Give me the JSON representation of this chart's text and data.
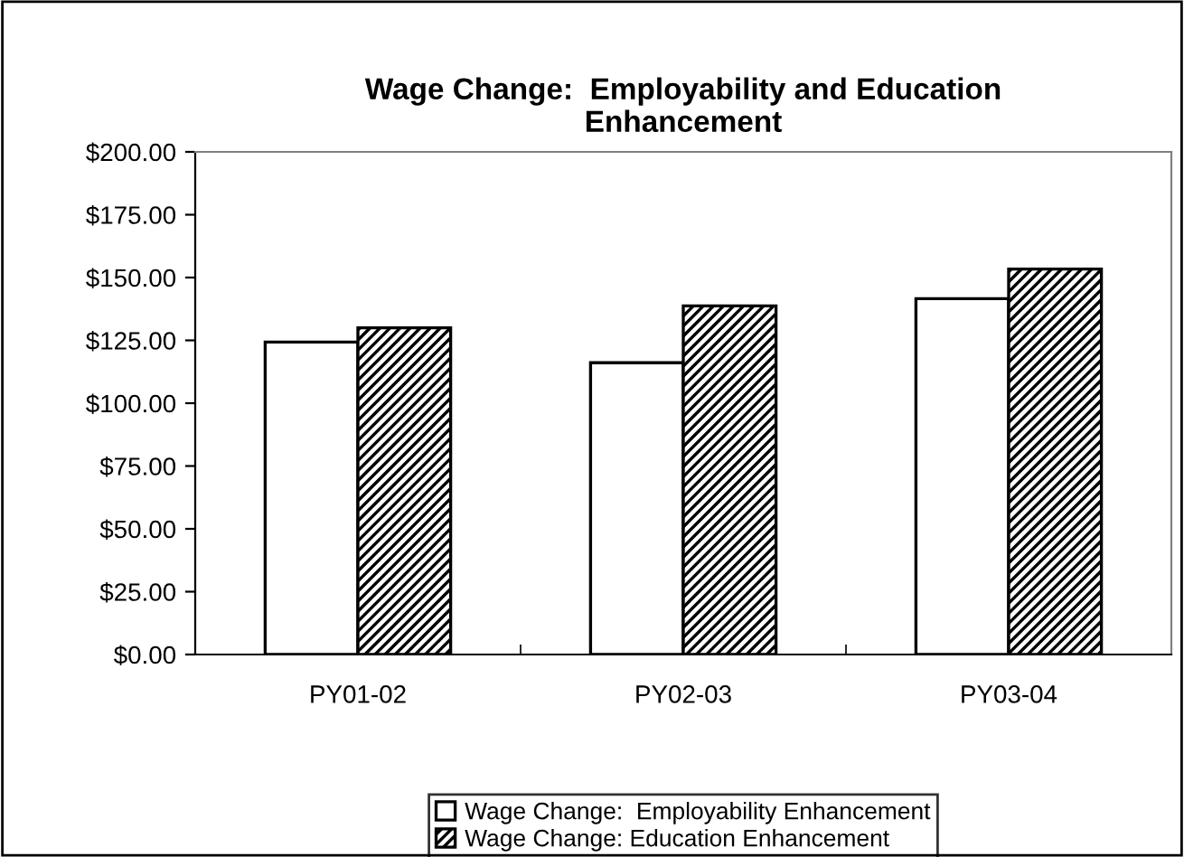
{
  "chart_data": {
    "type": "bar",
    "title": "Wage Change:  Employability and Education\nEnhancement",
    "categories": [
      "PY01-02",
      "PY02-03",
      "PY03-04"
    ],
    "series": [
      {
        "name": "Wage Change:  Employability Enhancement",
        "color": "#ffffff",
        "values": [
          124.3,
          116.1,
          141.6
        ]
      },
      {
        "name": "Wage Change: Education Enhancement",
        "color": "#000000",
        "values": [
          130.0,
          138.7,
          153.4
        ]
      }
    ],
    "ylim": [
      0,
      200
    ],
    "yticks": [
      {
        "value": 0,
        "label": "$0.00"
      },
      {
        "value": 25,
        "label": "$25.00"
      },
      {
        "value": 50,
        "label": "$50.00"
      },
      {
        "value": 75,
        "label": "$75.00"
      },
      {
        "value": 100,
        "label": "$100.00"
      },
      {
        "value": 125,
        "label": "$125.00"
      },
      {
        "value": 150,
        "label": "$150.00"
      },
      {
        "value": 175,
        "label": "$175.00"
      },
      {
        "value": 200,
        "label": "$200.00"
      }
    ],
    "grid": false,
    "legend": "bottom"
  }
}
